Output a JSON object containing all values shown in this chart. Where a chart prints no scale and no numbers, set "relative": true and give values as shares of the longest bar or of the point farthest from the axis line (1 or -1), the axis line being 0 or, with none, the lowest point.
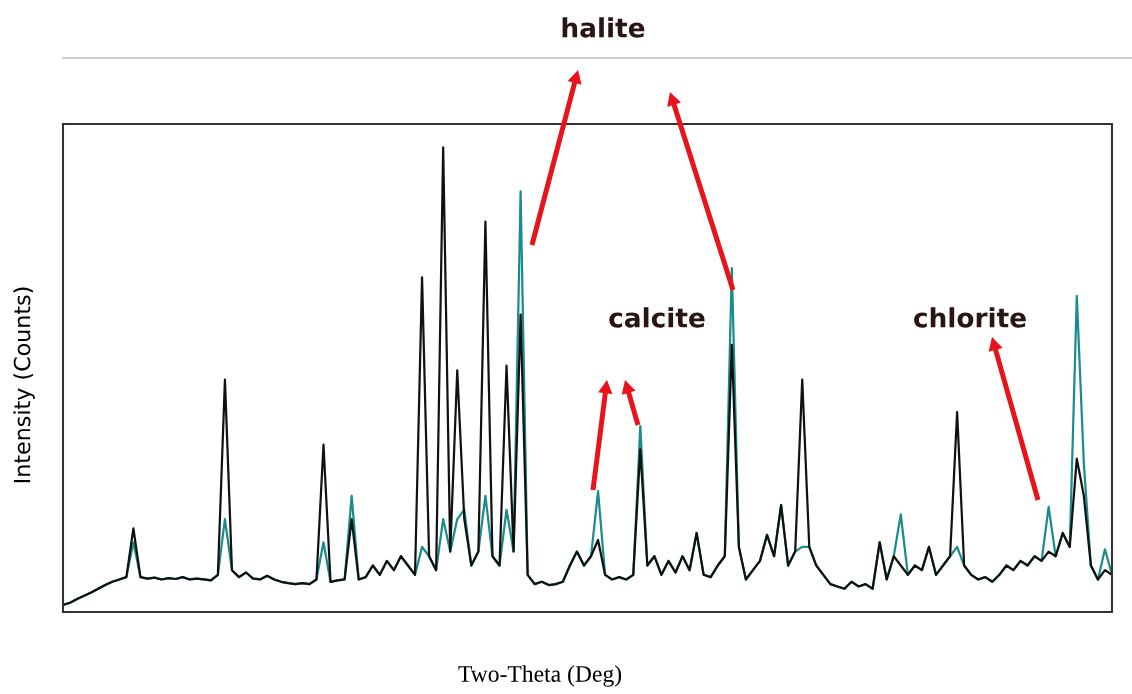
{
  "chart_data": {
    "type": "line",
    "relative": true,
    "xlabel": "Two-Theta (Deg)",
    "ylabel": "Intensity (Counts)",
    "annotations": [
      "halite",
      "calcite",
      "chlorite"
    ],
    "categories": [
      null,
      null,
      null,
      null,
      null,
      null,
      null,
      null,
      null,
      null,
      null,
      null,
      null,
      null,
      null,
      null,
      null,
      null,
      null,
      null,
      null,
      null,
      null,
      null,
      null,
      null,
      null,
      null,
      null,
      null,
      null,
      null,
      null,
      null,
      null,
      null,
      null,
      null,
      null,
      null,
      null,
      null,
      null,
      null,
      null,
      null,
      null,
      null,
      null,
      null,
      null,
      null,
      null,
      null,
      null,
      null,
      null,
      null,
      null,
      null,
      null,
      null,
      null,
      null,
      null,
      null,
      null,
      null,
      null,
      null,
      null,
      null,
      null,
      null,
      null,
      null,
      null,
      null,
      null,
      null,
      null,
      null,
      null,
      null,
      null,
      null,
      null,
      null,
      null,
      null,
      null,
      null,
      null,
      null,
      null,
      null,
      null,
      null,
      null,
      null,
      null,
      null,
      null,
      null,
      null,
      null,
      null,
      null,
      null,
      null,
      null,
      null,
      null,
      null,
      null,
      null,
      null,
      null,
      null,
      null,
      null,
      null,
      null,
      null,
      null,
      null,
      null,
      null,
      null,
      null,
      null,
      null,
      null,
      null,
      null,
      null,
      null,
      null,
      null,
      null,
      null,
      null,
      null,
      null,
      null,
      null,
      null,
      null,
      null,
      null
    ],
    "series": [
      {
        "color": "#1a8c8c",
        "values": [
          0.015,
          0.02,
          0.028,
          0.035,
          0.042,
          0.05,
          0.058,
          0.065,
          0.07,
          0.075,
          0.15,
          0.075,
          0.072,
          0.074,
          0.07,
          0.073,
          0.071,
          0.075,
          0.07,
          0.072,
          0.07,
          0.068,
          0.08,
          0.2,
          0.09,
          0.075,
          0.085,
          0.072,
          0.07,
          0.078,
          0.07,
          0.065,
          0.062,
          0.06,
          0.062,
          0.06,
          0.07,
          0.15,
          0.065,
          0.068,
          0.07,
          0.25,
          0.07,
          0.075,
          0.1,
          0.08,
          0.11,
          0.09,
          0.12,
          0.1,
          0.08,
          0.14,
          0.12,
          0.09,
          0.2,
          0.13,
          0.2,
          0.22,
          0.1,
          0.13,
          0.25,
          0.12,
          0.1,
          0.22,
          0.13,
          0.905,
          0.08,
          0.06,
          0.065,
          0.058,
          0.06,
          0.065,
          0.1,
          0.13,
          0.1,
          0.12,
          0.26,
          0.08,
          0.07,
          0.075,
          0.07,
          0.08,
          0.4,
          0.1,
          0.12,
          0.08,
          0.11,
          0.085,
          0.12,
          0.09,
          0.17,
          0.08,
          0.075,
          0.1,
          0.12,
          0.74,
          0.14,
          0.07,
          0.09,
          0.11,
          0.166,
          0.12,
          0.23,
          0.1,
          0.13,
          0.14,
          0.14,
          0.1,
          0.08,
          0.06,
          0.055,
          0.05,
          0.065,
          0.055,
          0.06,
          0.05,
          0.15,
          0.07,
          0.12,
          0.21,
          0.08,
          0.1,
          0.09,
          0.14,
          0.08,
          0.1,
          0.12,
          0.14,
          0.1,
          0.08,
          0.07,
          0.075,
          0.065,
          0.08,
          0.1,
          0.09,
          0.11,
          0.1,
          0.12,
          0.11,
          0.226,
          0.12,
          0.17,
          0.14,
          0.68,
          0.32,
          0.1,
          0.07,
          0.135,
          0.08
        ]
      },
      {
        "color": "#111111",
        "values": [
          0.015,
          0.02,
          0.028,
          0.035,
          0.042,
          0.05,
          0.058,
          0.065,
          0.07,
          0.075,
          0.18,
          0.075,
          0.072,
          0.074,
          0.07,
          0.073,
          0.071,
          0.075,
          0.07,
          0.072,
          0.07,
          0.068,
          0.08,
          0.5,
          0.09,
          0.075,
          0.085,
          0.072,
          0.07,
          0.078,
          0.07,
          0.065,
          0.062,
          0.06,
          0.062,
          0.06,
          0.07,
          0.36,
          0.065,
          0.068,
          0.07,
          0.2,
          0.07,
          0.075,
          0.1,
          0.08,
          0.11,
          0.09,
          0.12,
          0.1,
          0.08,
          0.72,
          0.12,
          0.09,
          1.0,
          0.13,
          0.52,
          0.2,
          0.1,
          0.13,
          0.84,
          0.12,
          0.1,
          0.53,
          0.13,
          0.64,
          0.08,
          0.06,
          0.065,
          0.058,
          0.06,
          0.065,
          0.1,
          0.13,
          0.1,
          0.12,
          0.155,
          0.08,
          0.07,
          0.075,
          0.07,
          0.08,
          0.35,
          0.1,
          0.12,
          0.08,
          0.11,
          0.085,
          0.12,
          0.09,
          0.17,
          0.08,
          0.075,
          0.1,
          0.12,
          0.575,
          0.14,
          0.07,
          0.09,
          0.11,
          0.166,
          0.12,
          0.23,
          0.1,
          0.13,
          0.5,
          0.14,
          0.1,
          0.08,
          0.06,
          0.055,
          0.05,
          0.065,
          0.055,
          0.06,
          0.05,
          0.15,
          0.07,
          0.12,
          0.1,
          0.08,
          0.1,
          0.09,
          0.14,
          0.08,
          0.1,
          0.12,
          0.43,
          0.1,
          0.08,
          0.07,
          0.075,
          0.065,
          0.08,
          0.1,
          0.09,
          0.11,
          0.1,
          0.12,
          0.11,
          0.13,
          0.12,
          0.17,
          0.14,
          0.33,
          0.25,
          0.1,
          0.07,
          0.09,
          0.08
        ]
      }
    ]
  }
}
